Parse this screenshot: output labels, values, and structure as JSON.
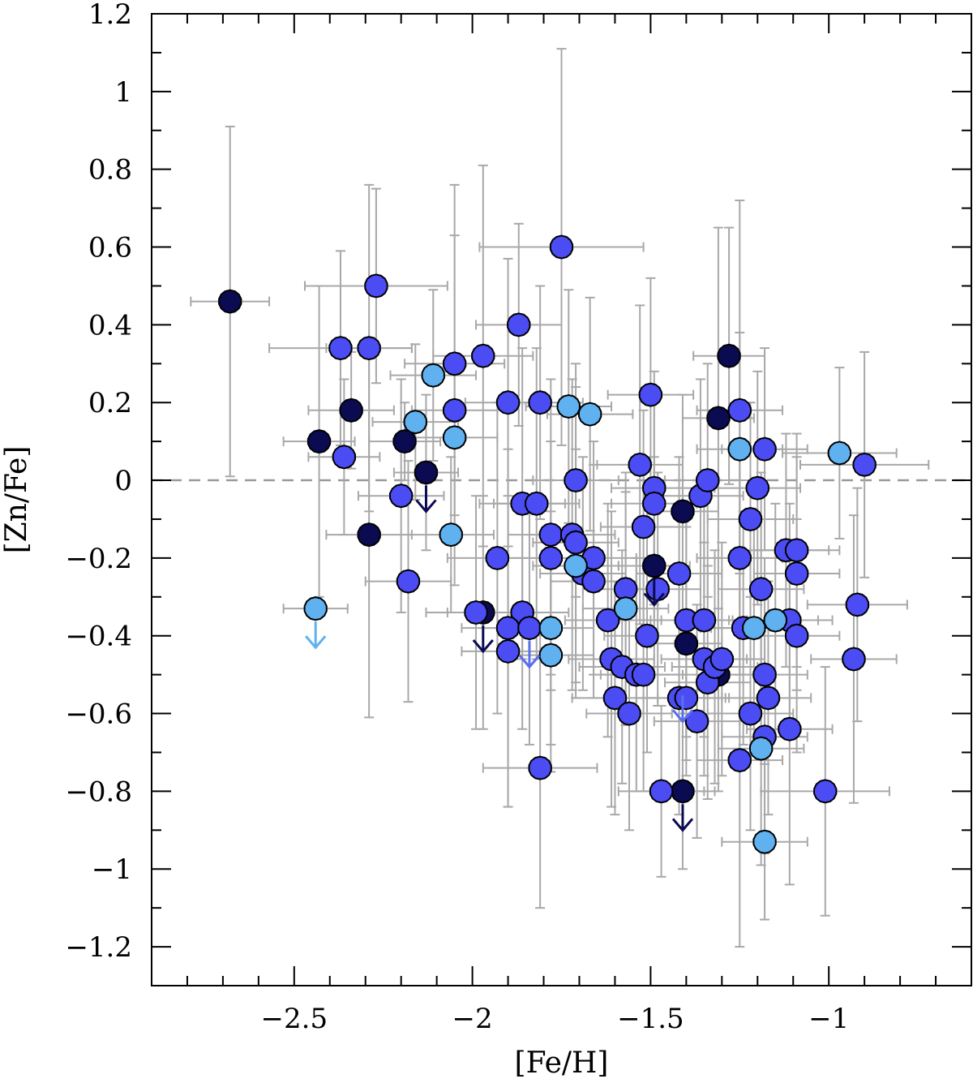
{
  "chart_data": {
    "type": "scatter",
    "title": "",
    "xlabel": "[Fe/H]",
    "ylabel": "[Zn/Fe]",
    "xlim": [
      -2.9,
      -0.6
    ],
    "ylim": [
      -1.3,
      1.2
    ],
    "x_ticks": [
      -2.5,
      -2,
      -1.5,
      -1
    ],
    "x_tick_labels": [
      "−2.5",
      "−2",
      "−1.5",
      "−1"
    ],
    "y_ticks": [
      1.2,
      1,
      0.8,
      0.6,
      0.4,
      0.2,
      0,
      -0.2,
      -0.4,
      -0.6,
      -0.8,
      -1,
      -1.2
    ],
    "y_tick_labels": [
      "1.2",
      "1",
      "0.8",
      "0.6",
      "0.4",
      "0.2",
      "0",
      "−0.2",
      "−0.4",
      "−0.6",
      "−0.8",
      "−1",
      "−1.2"
    ],
    "reference_line": {
      "y": 0,
      "style": "dashed",
      "color": "#999999"
    },
    "grid": false,
    "legend": "none",
    "colors": {
      "navy": "#0b0b52",
      "blue": "#4c4cf4",
      "light": "#5fb1ef",
      "errorbar": "#a8a8a8",
      "arrow_blue": "#5a6ef0"
    },
    "series": [
      {
        "color_key": "navy",
        "points": [
          {
            "x": -2.68,
            "y": 0.46,
            "ex": 0.11,
            "ey": 0.45
          },
          {
            "x": -2.34,
            "y": 0.18,
            "ex": 0.12,
            "ey": 0.15
          },
          {
            "x": -2.43,
            "y": 0.1,
            "ex": 0.1,
            "ey": 0.4
          },
          {
            "x": -2.29,
            "y": -0.14,
            "ex": 0.12,
            "ey": 0.47
          },
          {
            "x": -2.19,
            "y": 0.1,
            "ex": 0.1,
            "ey": 0.1
          },
          {
            "x": -2.13,
            "y": 0.02,
            "ex": 0.09,
            "ey": 0.2
          },
          {
            "x": -1.97,
            "y": -0.34,
            "ex": 0.1,
            "ey": 0.3
          },
          {
            "x": -1.49,
            "y": -0.22,
            "ex": 0.1,
            "ey": 0.28
          },
          {
            "x": -1.41,
            "y": -0.08,
            "ex": 0.1,
            "ey": 0.3
          },
          {
            "x": -1.4,
            "y": -0.42,
            "ex": 0.1,
            "ey": 0.3
          },
          {
            "x": -1.41,
            "y": -0.8,
            "ex": 0.09,
            "ey": 0.2
          },
          {
            "x": -1.28,
            "y": 0.32,
            "ex": 0.1,
            "ey": 0.33
          },
          {
            "x": -1.31,
            "y": 0.16,
            "ex": 0.1,
            "ey": 0.49
          },
          {
            "x": -1.31,
            "y": -0.5,
            "ex": 0.1,
            "ey": 0.3
          }
        ]
      },
      {
        "color_key": "blue",
        "points": [
          {
            "x": -2.27,
            "y": 0.5,
            "ex": 0.2,
            "ey": 0.25
          },
          {
            "x": -2.37,
            "y": 0.34,
            "ex": 0.2,
            "ey": 0.25
          },
          {
            "x": -2.29,
            "y": 0.34,
            "ex": 0.12,
            "ey": 0.42
          },
          {
            "x": -2.36,
            "y": 0.06,
            "ex": 0.1,
            "ey": 0.2
          },
          {
            "x": -2.2,
            "y": -0.04,
            "ex": 0.12,
            "ey": 0.3
          },
          {
            "x": -2.18,
            "y": -0.26,
            "ex": 0.12,
            "ey": 0.31
          },
          {
            "x": -2.05,
            "y": 0.3,
            "ex": 0.14,
            "ey": 0.46
          },
          {
            "x": -2.05,
            "y": 0.18,
            "ex": 0.12,
            "ey": 0.45
          },
          {
            "x": -1.97,
            "y": 0.32,
            "ex": 0.14,
            "ey": 0.49
          },
          {
            "x": -1.87,
            "y": 0.4,
            "ex": 0.12,
            "ey": 0.26
          },
          {
            "x": -1.9,
            "y": 0.2,
            "ex": 0.12,
            "ey": 0.37
          },
          {
            "x": -1.81,
            "y": 0.2,
            "ex": 0.12,
            "ey": 0.3
          },
          {
            "x": -1.75,
            "y": 0.6,
            "ex": 0.23,
            "ey": 0.51
          },
          {
            "x": -1.86,
            "y": -0.06,
            "ex": 0.12,
            "ey": 0.4
          },
          {
            "x": -1.82,
            "y": -0.06,
            "ex": 0.12,
            "ey": 0.4
          },
          {
            "x": -1.93,
            "y": -0.2,
            "ex": 0.14,
            "ey": 0.4
          },
          {
            "x": -1.99,
            "y": -0.34,
            "ex": 0.14,
            "ey": 0.3
          },
          {
            "x": -1.86,
            "y": -0.34,
            "ex": 0.13,
            "ey": 0.3
          },
          {
            "x": -1.9,
            "y": -0.38,
            "ex": 0.13,
            "ey": 0.46
          },
          {
            "x": -1.84,
            "y": -0.38,
            "ex": 0.13,
            "ey": 0.3
          },
          {
            "x": -1.9,
            "y": -0.44,
            "ex": 0.13,
            "ey": 0.4
          },
          {
            "x": -1.81,
            "y": -0.74,
            "ex": 0.16,
            "ey": 0.36
          },
          {
            "x": -1.78,
            "y": -0.14,
            "ex": 0.12,
            "ey": 0.4
          },
          {
            "x": -1.78,
            "y": -0.2,
            "ex": 0.12,
            "ey": 0.3
          },
          {
            "x": -1.71,
            "y": 0.0,
            "ex": 0.12,
            "ey": 0.3
          },
          {
            "x": -1.72,
            "y": -0.14,
            "ex": 0.12,
            "ey": 0.4
          },
          {
            "x": -1.71,
            "y": -0.16,
            "ex": 0.12,
            "ey": 0.4
          },
          {
            "x": -1.69,
            "y": -0.24,
            "ex": 0.12,
            "ey": 0.3
          },
          {
            "x": -1.66,
            "y": -0.2,
            "ex": 0.12,
            "ey": 0.3
          },
          {
            "x": -1.66,
            "y": -0.26,
            "ex": 0.12,
            "ey": 0.3
          },
          {
            "x": -1.62,
            "y": -0.36,
            "ex": 0.12,
            "ey": 0.3
          },
          {
            "x": -1.61,
            "y": -0.46,
            "ex": 0.12,
            "ey": 0.38
          },
          {
            "x": -1.6,
            "y": -0.56,
            "ex": 0.12,
            "ey": 0.3
          },
          {
            "x": -1.58,
            "y": -0.48,
            "ex": 0.12,
            "ey": 0.3
          },
          {
            "x": -1.57,
            "y": -0.28,
            "ex": 0.12,
            "ey": 0.3
          },
          {
            "x": -1.56,
            "y": -0.6,
            "ex": 0.12,
            "ey": 0.3
          },
          {
            "x": -1.54,
            "y": -0.5,
            "ex": 0.12,
            "ey": 0.3
          },
          {
            "x": -1.53,
            "y": 0.04,
            "ex": 0.12,
            "ey": 0.41
          },
          {
            "x": -1.52,
            "y": -0.12,
            "ex": 0.12,
            "ey": 0.3
          },
          {
            "x": -1.52,
            "y": -0.5,
            "ex": 0.12,
            "ey": 0.3
          },
          {
            "x": -1.51,
            "y": -0.4,
            "ex": 0.12,
            "ey": 0.3
          },
          {
            "x": -1.5,
            "y": 0.22,
            "ex": 0.12,
            "ey": 0.3
          },
          {
            "x": -1.49,
            "y": -0.02,
            "ex": 0.12,
            "ey": 0.3
          },
          {
            "x": -1.49,
            "y": -0.06,
            "ex": 0.12,
            "ey": 0.3
          },
          {
            "x": -1.48,
            "y": -0.28,
            "ex": 0.12,
            "ey": 0.3
          },
          {
            "x": -1.47,
            "y": -0.8,
            "ex": 0.12,
            "ey": 0.22
          },
          {
            "x": -1.42,
            "y": -0.24,
            "ex": 0.12,
            "ey": 0.3
          },
          {
            "x": -1.42,
            "y": -0.56,
            "ex": 0.12,
            "ey": 0.3
          },
          {
            "x": -1.4,
            "y": -0.36,
            "ex": 0.12,
            "ey": 0.3
          },
          {
            "x": -1.4,
            "y": -0.56,
            "ex": 0.12,
            "ey": 0.2
          },
          {
            "x": -1.37,
            "y": -0.62,
            "ex": 0.12,
            "ey": 0.3
          },
          {
            "x": -1.35,
            "y": -0.36,
            "ex": 0.12,
            "ey": 0.3
          },
          {
            "x": -1.36,
            "y": -0.04,
            "ex": 0.12,
            "ey": 0.3
          },
          {
            "x": -1.34,
            "y": 0.0,
            "ex": 0.12,
            "ey": 0.3
          },
          {
            "x": -1.35,
            "y": -0.46,
            "ex": 0.12,
            "ey": 0.3
          },
          {
            "x": -1.34,
            "y": -0.52,
            "ex": 0.12,
            "ey": 0.3
          },
          {
            "x": -1.32,
            "y": -0.48,
            "ex": 0.12,
            "ey": 0.3
          },
          {
            "x": -1.3,
            "y": -0.46,
            "ex": 0.12,
            "ey": 0.3
          },
          {
            "x": -1.25,
            "y": 0.18,
            "ex": 0.12,
            "ey": 0.54
          },
          {
            "x": -1.25,
            "y": -0.2,
            "ex": 0.12,
            "ey": 0.3
          },
          {
            "x": -1.24,
            "y": -0.38,
            "ex": 0.12,
            "ey": 0.3
          },
          {
            "x": -1.25,
            "y": -0.72,
            "ex": 0.12,
            "ey": 0.48
          },
          {
            "x": -1.22,
            "y": -0.1,
            "ex": 0.12,
            "ey": 0.3
          },
          {
            "x": -1.22,
            "y": -0.6,
            "ex": 0.12,
            "ey": 0.3
          },
          {
            "x": -1.2,
            "y": -0.02,
            "ex": 0.12,
            "ey": 0.3
          },
          {
            "x": -1.19,
            "y": -0.28,
            "ex": 0.12,
            "ey": 0.3
          },
          {
            "x": -1.18,
            "y": 0.08,
            "ex": 0.12,
            "ey": 0.26
          },
          {
            "x": -1.18,
            "y": -0.5,
            "ex": 0.12,
            "ey": 0.3
          },
          {
            "x": -1.17,
            "y": -0.56,
            "ex": 0.12,
            "ey": 0.3
          },
          {
            "x": -1.18,
            "y": -0.66,
            "ex": 0.12,
            "ey": 0.3
          },
          {
            "x": -1.12,
            "y": -0.18,
            "ex": 0.12,
            "ey": 0.3
          },
          {
            "x": -1.11,
            "y": -0.36,
            "ex": 0.12,
            "ey": 0.3
          },
          {
            "x": -1.11,
            "y": -0.64,
            "ex": 0.12,
            "ey": 0.4
          },
          {
            "x": -1.09,
            "y": -0.18,
            "ex": 0.12,
            "ey": 0.3
          },
          {
            "x": -1.09,
            "y": -0.24,
            "ex": 0.12,
            "ey": 0.3
          },
          {
            "x": -1.09,
            "y": -0.4,
            "ex": 0.12,
            "ey": 0.3
          },
          {
            "x": -1.01,
            "y": -0.8,
            "ex": 0.18,
            "ey": 0.32
          },
          {
            "x": -0.92,
            "y": -0.32,
            "ex": 0.14,
            "ey": 0.3
          },
          {
            "x": -0.93,
            "y": -0.46,
            "ex": 0.12,
            "ey": 0.37
          },
          {
            "x": -0.9,
            "y": 0.04,
            "ex": 0.18,
            "ey": 0.29
          }
        ]
      },
      {
        "color_key": "light",
        "points": [
          {
            "x": -2.16,
            "y": 0.15,
            "ex": 0.12,
            "ey": 0.2
          },
          {
            "x": -2.11,
            "y": 0.27,
            "ex": 0.12,
            "ey": 0.22
          },
          {
            "x": -2.05,
            "y": 0.11,
            "ex": 0.12,
            "ey": 0.2
          },
          {
            "x": -2.06,
            "y": -0.14,
            "ex": 0.12,
            "ey": 0.2
          },
          {
            "x": -1.73,
            "y": 0.19,
            "ex": 0.12,
            "ey": 0.3
          },
          {
            "x": -1.67,
            "y": 0.17,
            "ex": 0.12,
            "ey": 0.3
          },
          {
            "x": -1.71,
            "y": -0.22,
            "ex": 0.12,
            "ey": 0.3
          },
          {
            "x": -1.78,
            "y": -0.38,
            "ex": 0.12,
            "ey": 0.3
          },
          {
            "x": -1.78,
            "y": -0.45,
            "ex": 0.12,
            "ey": 0.3
          },
          {
            "x": -1.57,
            "y": -0.33,
            "ex": 0.12,
            "ey": 0.3
          },
          {
            "x": -1.25,
            "y": 0.08,
            "ex": 0.12,
            "ey": 0.3
          },
          {
            "x": -1.21,
            "y": -0.38,
            "ex": 0.12,
            "ey": 0.3
          },
          {
            "x": -1.15,
            "y": -0.36,
            "ex": 0.12,
            "ey": 0.3
          },
          {
            "x": -1.19,
            "y": -0.69,
            "ex": 0.12,
            "ey": 0.3
          },
          {
            "x": -1.18,
            "y": -0.93,
            "ex": 0.12,
            "ey": 0.2
          },
          {
            "x": -0.97,
            "y": 0.07,
            "ex": 0.16,
            "ey": 0.22
          },
          {
            "x": -2.44,
            "y": -0.33,
            "ex": 0.09,
            "ey": 0.0
          }
        ]
      }
    ],
    "upper_limits": [
      {
        "x": -2.44,
        "y": -0.33,
        "color_key": "light"
      },
      {
        "x": -2.13,
        "y": 0.02,
        "color_key": "navy"
      },
      {
        "x": -1.97,
        "y": -0.34,
        "color_key": "navy"
      },
      {
        "x": -1.84,
        "y": -0.38,
        "color_key": "arrow_blue"
      },
      {
        "x": -1.49,
        "y": -0.22,
        "color_key": "navy"
      },
      {
        "x": -1.41,
        "y": -0.52,
        "color_key": "arrow_blue"
      },
      {
        "x": -1.41,
        "y": -0.8,
        "color_key": "navy"
      }
    ]
  }
}
